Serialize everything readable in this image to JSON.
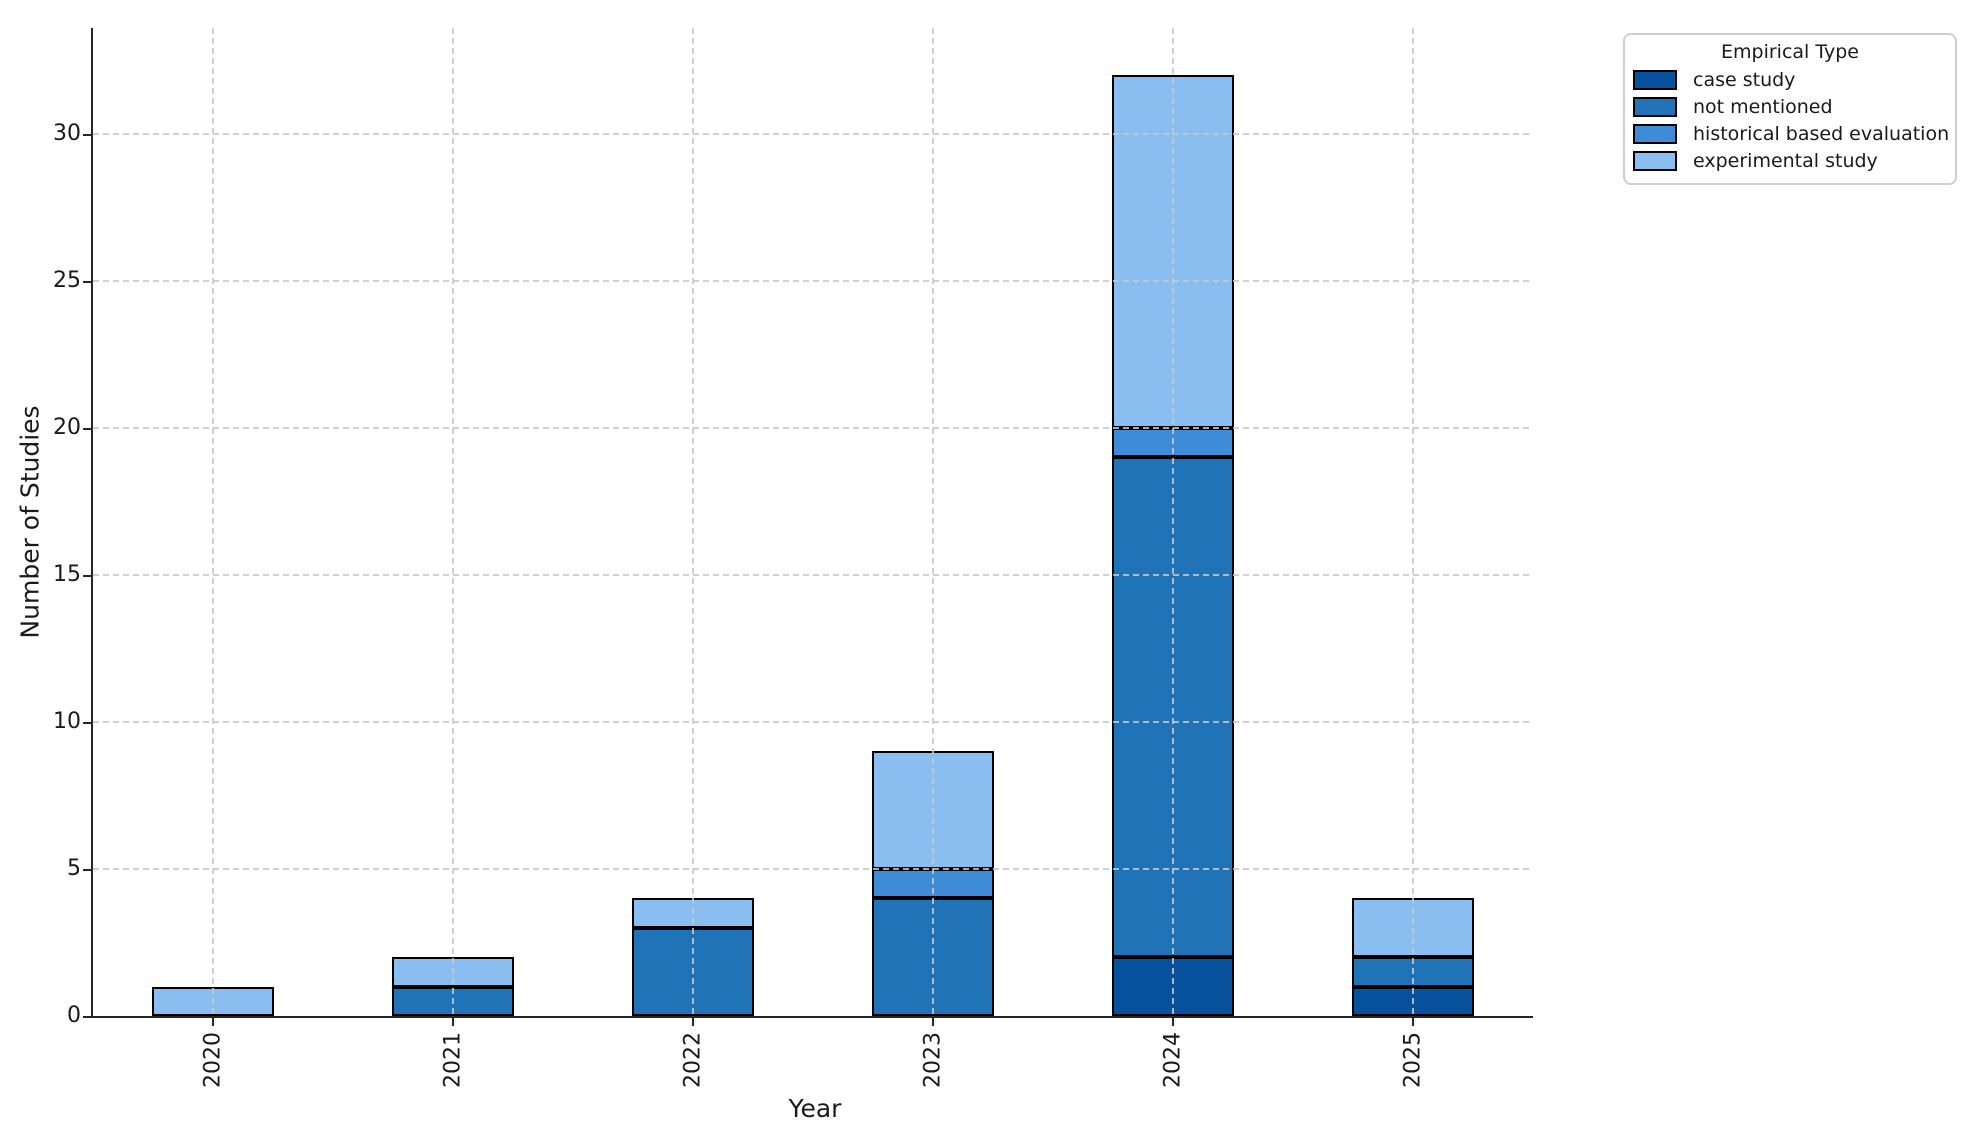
{
  "chart_data": {
    "type": "bar",
    "stacked": true,
    "title": "",
    "xlabel": "Year",
    "ylabel": "Number of Studies",
    "categories": [
      "2020",
      "2021",
      "2022",
      "2023",
      "2024",
      "2025"
    ],
    "series": [
      {
        "name": "case study",
        "color": "#08519c",
        "values": [
          0,
          0,
          0,
          0,
          2,
          1
        ]
      },
      {
        "name": "not mentioned",
        "color": "#2173b8",
        "values": [
          0,
          1,
          3,
          4,
          17,
          1
        ]
      },
      {
        "name": "historical based evaluation",
        "color": "#3e8cd8",
        "values": [
          0,
          0,
          0,
          1,
          1,
          0
        ]
      },
      {
        "name": "experimental study",
        "color": "#8abef1",
        "values": [
          1,
          1,
          1,
          4,
          12,
          2
        ]
      }
    ],
    "totals": [
      1,
      2,
      4,
      9,
      32,
      4
    ],
    "yticks": [
      0,
      5,
      10,
      15,
      20,
      25,
      30
    ],
    "ylim": [
      0,
      33.6
    ],
    "grid": {
      "on": true,
      "style": "dashed",
      "color": "#c8c8c8",
      "over_bars": true
    },
    "legend": {
      "title": "Empirical Type",
      "position": "upper right"
    },
    "colors": {
      "bar_edge": "#000000",
      "axis": "#262626",
      "text": "#1a1a1a",
      "background": "#ffffff"
    }
  }
}
